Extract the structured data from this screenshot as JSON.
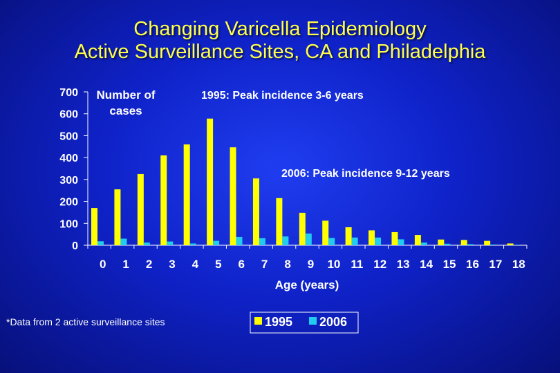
{
  "title_line1": "Changing Varicella Epidemiology",
  "title_line2": "Active Surveillance Sites, CA and Philadelphia",
  "footnote": "*Data from 2 active surveillance sites",
  "annotations": {
    "peak_1995": "1995: Peak incidence 3-6 years",
    "peak_2006": "2006: Peak incidence 9-12 years"
  },
  "colors": {
    "series_1995": "#ffff00",
    "series_2006": "#22ccee",
    "title": "#ffff4a",
    "text": "#ffffff"
  },
  "chart_data": {
    "type": "bar",
    "ylabel_line1": "Number of",
    "ylabel_line2": "cases",
    "xlabel": "Age (years)",
    "ylim": [
      0,
      700
    ],
    "yticks": [
      0,
      100,
      200,
      300,
      400,
      500,
      600,
      700
    ],
    "categories": [
      "0",
      "1",
      "2",
      "3",
      "4",
      "5",
      "6",
      "7",
      "8",
      "9",
      "10",
      "11",
      "12",
      "13",
      "14",
      "15",
      "16",
      "17",
      "18"
    ],
    "series": [
      {
        "name": "1995",
        "values": [
          170,
          255,
          325,
          410,
          460,
          578,
          447,
          305,
          215,
          148,
          112,
          82,
          68,
          60,
          47,
          26,
          24,
          20,
          8
        ]
      },
      {
        "name": "2006",
        "values": [
          18,
          30,
          12,
          17,
          8,
          20,
          38,
          32,
          40,
          53,
          33,
          35,
          35,
          27,
          12,
          7,
          5,
          3,
          2
        ]
      }
    ],
    "legend": "bottom-center"
  }
}
